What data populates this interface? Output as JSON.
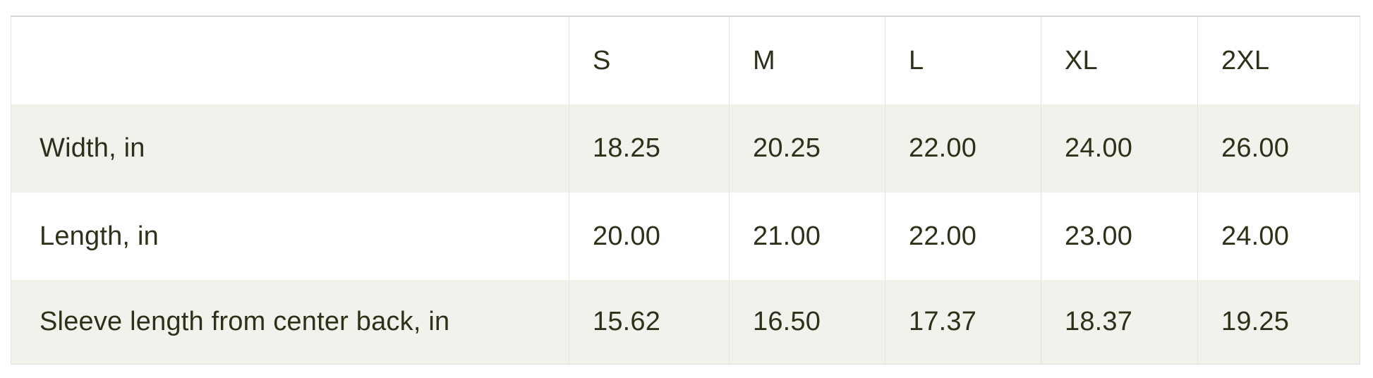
{
  "size_guide": {
    "unit_note": "in",
    "columns": [
      "S",
      "M",
      "L",
      "XL",
      "2XL"
    ],
    "rows": [
      {
        "label": "Width, in",
        "values": [
          "18.25",
          "20.25",
          "22.00",
          "24.00",
          "26.00"
        ]
      },
      {
        "label": "Length, in",
        "values": [
          "20.00",
          "21.00",
          "22.00",
          "23.00",
          "24.00"
        ]
      },
      {
        "label": "Sleeve length from center back, in",
        "values": [
          "15.62",
          "16.50",
          "17.37",
          "18.37",
          "19.25"
        ]
      }
    ],
    "colors": {
      "text": "#30301a",
      "alt_row_bg": "#f2f2ed",
      "divider": "#e4e4de",
      "outer_border": "#e2e2dc",
      "top_border": "#d6d6d0",
      "background": "#ffffff"
    }
  }
}
